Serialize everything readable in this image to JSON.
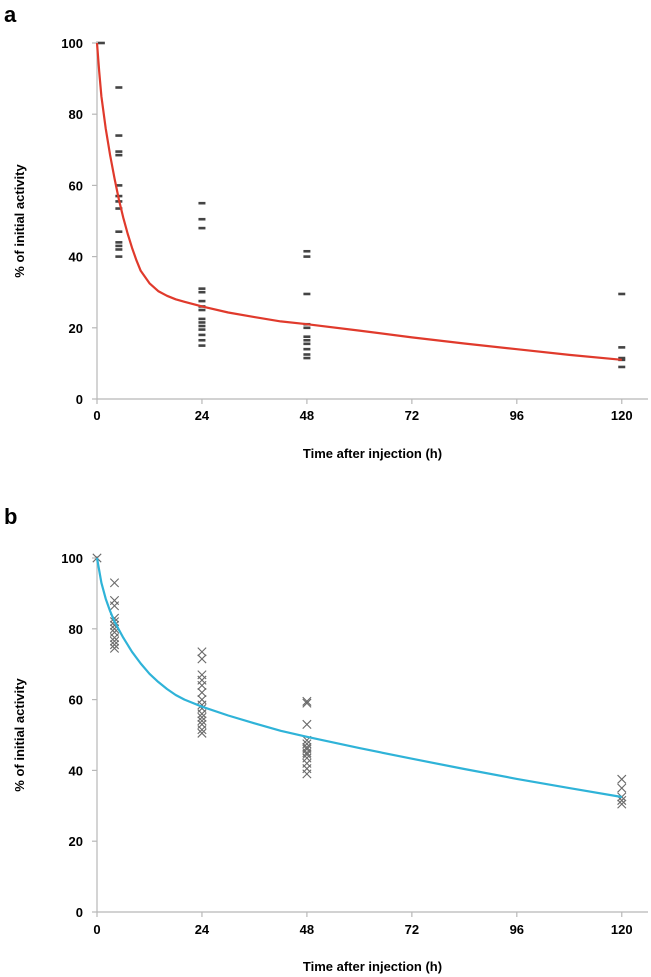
{
  "chart_data": [
    {
      "panel": "a",
      "type": "scatter",
      "xlabel": "Time after injection (h)",
      "ylabel": "% of initial activity",
      "xlim": [
        0,
        126
      ],
      "ylim": [
        0,
        100
      ],
      "xticks": [
        0,
        24,
        48,
        72,
        96,
        120
      ],
      "yticks": [
        0,
        20,
        40,
        60,
        80,
        100
      ],
      "grid": false,
      "marker": "dash",
      "series": [
        {
          "kind": "points",
          "color": "#444444",
          "points": [
            [
              1,
              100
            ],
            [
              5,
              87.5
            ],
            [
              5,
              74
            ],
            [
              5,
              69.5
            ],
            [
              5,
              68.5
            ],
            [
              5,
              60
            ],
            [
              5,
              57
            ],
            [
              5,
              55.5
            ],
            [
              5,
              53.5
            ],
            [
              5,
              47
            ],
            [
              5,
              44
            ],
            [
              5,
              43
            ],
            [
              5,
              42
            ],
            [
              5,
              40
            ],
            [
              24,
              55
            ],
            [
              24,
              50.5
            ],
            [
              24,
              48
            ],
            [
              24,
              31
            ],
            [
              24,
              30
            ],
            [
              24,
              27.5
            ],
            [
              24,
              26
            ],
            [
              24,
              25
            ],
            [
              24,
              22.5
            ],
            [
              24,
              21.5
            ],
            [
              24,
              20.5
            ],
            [
              24,
              19.5
            ],
            [
              24,
              18
            ],
            [
              24,
              16.5
            ],
            [
              24,
              15
            ],
            [
              48,
              41.5
            ],
            [
              48,
              40
            ],
            [
              48,
              29.5
            ],
            [
              48,
              21
            ],
            [
              48,
              20
            ],
            [
              48,
              17.5
            ],
            [
              48,
              16.5
            ],
            [
              48,
              15.5
            ],
            [
              48,
              14
            ],
            [
              48,
              12.5
            ],
            [
              48,
              11.5
            ],
            [
              120,
              29.5
            ],
            [
              120,
              14.5
            ],
            [
              120,
              11.5
            ],
            [
              120,
              11
            ],
            [
              120,
              9
            ]
          ]
        },
        {
          "kind": "fit",
          "color": "#e03a2c",
          "points": [
            [
              0,
              100
            ],
            [
              0.5,
              92
            ],
            [
              1,
              85
            ],
            [
              2,
              76
            ],
            [
              3,
              68.5
            ],
            [
              4,
              62
            ],
            [
              5,
              56
            ],
            [
              6,
              51
            ],
            [
              7,
              46.5
            ],
            [
              8,
              42.5
            ],
            [
              9,
              39
            ],
            [
              10,
              36
            ],
            [
              12,
              32.5
            ],
            [
              14,
              30.3
            ],
            [
              16,
              29
            ],
            [
              18,
              28
            ],
            [
              20,
              27.3
            ],
            [
              24,
              26
            ],
            [
              30,
              24.3
            ],
            [
              36,
              23
            ],
            [
              42,
              21.8
            ],
            [
              48,
              21
            ],
            [
              60,
              19.2
            ],
            [
              72,
              17.3
            ],
            [
              84,
              15.6
            ],
            [
              96,
              14
            ],
            [
              108,
              12.4
            ],
            [
              120,
              11
            ]
          ]
        }
      ]
    },
    {
      "panel": "b",
      "type": "scatter",
      "xlabel": "Time after injection (h)",
      "ylabel": "% of initial activity",
      "xlim": [
        0,
        126
      ],
      "ylim": [
        0,
        100
      ],
      "xticks": [
        0,
        24,
        48,
        72,
        96,
        120
      ],
      "yticks": [
        0,
        20,
        40,
        60,
        80,
        100
      ],
      "grid": false,
      "marker": "x",
      "series": [
        {
          "kind": "points",
          "color": "#6a6a6a",
          "points": [
            [
              0,
              100
            ],
            [
              4,
              93
            ],
            [
              4,
              88
            ],
            [
              4,
              86.5
            ],
            [
              4,
              83
            ],
            [
              4,
              82
            ],
            [
              4,
              81
            ],
            [
              4,
              80
            ],
            [
              4,
              79
            ],
            [
              4,
              77.5
            ],
            [
              4,
              76.5
            ],
            [
              4,
              75.5
            ],
            [
              4,
              74.5
            ],
            [
              24,
              73.5
            ],
            [
              24,
              71.5
            ],
            [
              24,
              67
            ],
            [
              24,
              65.5
            ],
            [
              24,
              64
            ],
            [
              24,
              62
            ],
            [
              24,
              60
            ],
            [
              24,
              58.5
            ],
            [
              24,
              57.5
            ],
            [
              24,
              56
            ],
            [
              24,
              55
            ],
            [
              24,
              54
            ],
            [
              24,
              53
            ],
            [
              24,
              51.5
            ],
            [
              24,
              50.5
            ],
            [
              48,
              59.5
            ],
            [
              48,
              59
            ],
            [
              48,
              53
            ],
            [
              48,
              48.5
            ],
            [
              48,
              47.5
            ],
            [
              48,
              46.5
            ],
            [
              48,
              46
            ],
            [
              48,
              45
            ],
            [
              48,
              44.5
            ],
            [
              48,
              43.5
            ],
            [
              48,
              42
            ],
            [
              48,
              40.5
            ],
            [
              48,
              39
            ],
            [
              120,
              37.5
            ],
            [
              120,
              35
            ],
            [
              120,
              32.5
            ],
            [
              120,
              31.5
            ],
            [
              120,
              30.5
            ]
          ]
        },
        {
          "kind": "fit",
          "color": "#2fb3d8",
          "points": [
            [
              0,
              100
            ],
            [
              1,
              93
            ],
            [
              2,
              88.5
            ],
            [
              3,
              85
            ],
            [
              4,
              82
            ],
            [
              6,
              77.5
            ],
            [
              8,
              73.5
            ],
            [
              10,
              70.2
            ],
            [
              12,
              67.3
            ],
            [
              14,
              65
            ],
            [
              16,
              63
            ],
            [
              18,
              61.3
            ],
            [
              20,
              60
            ],
            [
              22,
              59
            ],
            [
              24,
              58
            ],
            [
              30,
              55.5
            ],
            [
              36,
              53.3
            ],
            [
              42,
              51.2
            ],
            [
              48,
              49.5
            ],
            [
              60,
              46.3
            ],
            [
              72,
              43.3
            ],
            [
              84,
              40.4
            ],
            [
              96,
              37.6
            ],
            [
              108,
              35
            ],
            [
              120,
              32.5
            ]
          ]
        }
      ]
    }
  ]
}
